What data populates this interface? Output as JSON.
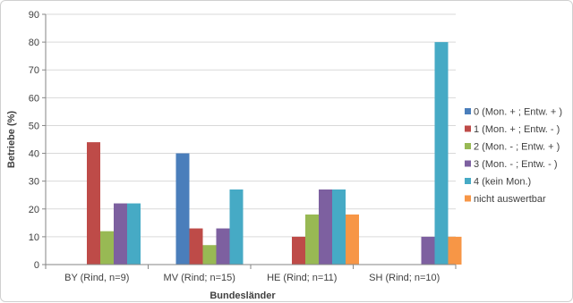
{
  "chart_data": {
    "type": "bar",
    "categories": [
      "BY (Rind, n=9)",
      "MV (Rind; n=15)",
      "HE (Rind; n=11)",
      "SH (Rind; n=10)"
    ],
    "series": [
      {
        "name": "0 (Mon. + ; Entw. + )",
        "color": "#4a7ebb",
        "values": [
          0,
          40,
          0,
          0
        ]
      },
      {
        "name": "1 (Mon. + ; Entw. - )",
        "color": "#be4b48",
        "values": [
          44,
          13,
          10,
          0
        ]
      },
      {
        "name": "2 (Mon. - ; Entw. + )",
        "color": "#98b954",
        "values": [
          12,
          7,
          18,
          0
        ]
      },
      {
        "name": "3 (Mon. - ; Entw. - )",
        "color": "#7d60a0",
        "values": [
          22,
          13,
          27,
          10
        ]
      },
      {
        "name": "4 (kein Mon.)",
        "color": "#46aac5",
        "values": [
          22,
          27,
          27,
          80
        ]
      },
      {
        "name": "nicht auswertbar",
        "color": "#f79646",
        "values": [
          0,
          0,
          18,
          10
        ]
      }
    ],
    "xlabel": "Bundesländer",
    "ylabel": "Betriebe (%)",
    "ylim": [
      0,
      90
    ],
    "yticks": [
      0,
      10,
      20,
      30,
      40,
      50,
      60,
      70,
      80,
      90
    ],
    "grid": true,
    "legend": "right"
  }
}
